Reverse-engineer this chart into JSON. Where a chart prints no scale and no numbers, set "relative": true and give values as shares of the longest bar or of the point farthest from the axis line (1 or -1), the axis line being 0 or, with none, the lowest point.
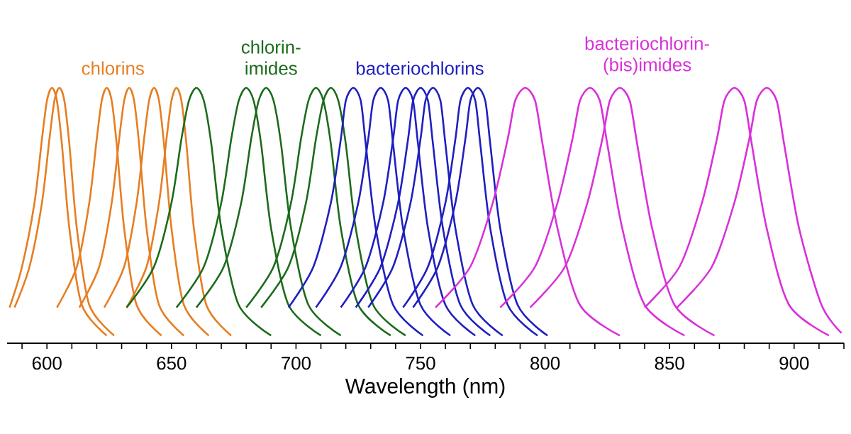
{
  "chart_data": {
    "type": "line",
    "relative": true,
    "xlabel": "Wavelength (nm)",
    "xlim": [
      584,
      920
    ],
    "xticks": [
      {
        "value": 590,
        "label": null
      },
      600,
      {
        "value": 610,
        "label": null
      },
      {
        "value": 620,
        "label": null
      },
      {
        "value": 630,
        "label": null
      },
      {
        "value": 640,
        "label": null
      },
      650,
      {
        "value": 660,
        "label": null
      },
      {
        "value": 670,
        "label": null
      },
      {
        "value": 680,
        "label": null
      },
      {
        "value": 690,
        "label": null
      },
      700,
      {
        "value": 710,
        "label": null
      },
      {
        "value": 720,
        "label": null
      },
      {
        "value": 730,
        "label": null
      },
      {
        "value": 740,
        "label": null
      },
      750,
      {
        "value": 760,
        "label": null
      },
      {
        "value": 770,
        "label": null
      },
      {
        "value": 780,
        "label": null
      },
      {
        "value": 790,
        "label": null
      },
      800,
      {
        "value": 810,
        "label": null
      },
      {
        "value": 820,
        "label": null
      },
      {
        "value": 830,
        "label": null
      },
      {
        "value": 840,
        "label": null
      },
      850,
      {
        "value": 860,
        "label": null
      },
      {
        "value": 870,
        "label": null
      },
      {
        "value": 880,
        "label": null
      },
      {
        "value": 890,
        "label": null
      },
      900,
      {
        "value": 910,
        "label": null
      },
      {
        "value": 920,
        "label": null
      }
    ],
    "series": [
      {
        "name": "chlorins",
        "color": "#e67e22",
        "x": [
          585,
          590,
          595,
          598,
          600,
          602,
          604,
          606,
          609,
          614,
          624
        ],
        "values": [
          0.14,
          0.3,
          0.55,
          0.8,
          0.95,
          1,
          0.95,
          0.78,
          0.45,
          0.15,
          0.03
        ]
      },
      {
        "color": "#e67e22",
        "x": [
          587,
          593,
          598,
          601,
          603,
          605,
          607,
          609,
          612,
          617,
          627
        ],
        "values": [
          0.14,
          0.3,
          0.55,
          0.8,
          0.95,
          1,
          0.95,
          0.78,
          0.45,
          0.15,
          0.03
        ]
      },
      {
        "color": "#e67e22",
        "x": [
          604,
          612,
          617,
          620,
          622,
          624,
          626,
          628,
          631,
          636,
          646
        ],
        "values": [
          0.14,
          0.3,
          0.55,
          0.8,
          0.95,
          1,
          0.95,
          0.78,
          0.45,
          0.15,
          0.03
        ]
      },
      {
        "color": "#e67e22",
        "x": [
          613,
          621,
          626,
          629,
          631,
          633,
          635,
          637,
          640,
          645,
          655
        ],
        "values": [
          0.14,
          0.3,
          0.55,
          0.8,
          0.95,
          1,
          0.95,
          0.78,
          0.45,
          0.15,
          0.03
        ]
      },
      {
        "color": "#e67e22",
        "x": [
          623,
          631,
          636,
          639,
          641,
          643,
          645,
          647,
          650,
          655,
          665
        ],
        "values": [
          0.14,
          0.3,
          0.55,
          0.8,
          0.95,
          1,
          0.95,
          0.78,
          0.45,
          0.15,
          0.03
        ]
      },
      {
        "color": "#e67e22",
        "x": [
          632,
          640,
          645,
          648,
          650,
          652,
          654,
          656,
          659,
          664,
          674
        ],
        "values": [
          0.14,
          0.3,
          0.55,
          0.8,
          0.95,
          1,
          0.95,
          0.78,
          0.45,
          0.15,
          0.03
        ]
      },
      {
        "name": "chlorin-imides",
        "color": "#1b6b1b",
        "x": [
          632,
          643,
          650,
          654,
          657,
          660,
          663,
          666,
          670,
          677,
          690
        ],
        "values": [
          0.14,
          0.3,
          0.55,
          0.8,
          0.95,
          1,
          0.95,
          0.78,
          0.45,
          0.15,
          0.03
        ]
      },
      {
        "color": "#1b6b1b",
        "x": [
          652,
          663,
          670,
          674,
          677,
          680,
          683,
          686,
          690,
          697,
          710
        ],
        "values": [
          0.14,
          0.3,
          0.55,
          0.8,
          0.95,
          1,
          0.95,
          0.78,
          0.45,
          0.15,
          0.03
        ]
      },
      {
        "color": "#1b6b1b",
        "x": [
          660,
          671,
          678,
          682,
          685,
          688,
          691,
          694,
          698,
          705,
          718
        ],
        "values": [
          0.14,
          0.3,
          0.55,
          0.8,
          0.95,
          1,
          0.95,
          0.78,
          0.45,
          0.15,
          0.03
        ]
      },
      {
        "color": "#1b6b1b",
        "x": [
          680,
          691,
          698,
          702,
          705,
          708,
          711,
          714,
          718,
          725,
          738
        ],
        "values": [
          0.14,
          0.3,
          0.55,
          0.8,
          0.95,
          1,
          0.95,
          0.78,
          0.45,
          0.15,
          0.03
        ]
      },
      {
        "color": "#1b6b1b",
        "x": [
          686,
          697,
          704,
          708,
          711,
          714,
          717,
          720,
          724,
          731,
          744
        ],
        "values": [
          0.14,
          0.3,
          0.55,
          0.8,
          0.95,
          1,
          0.95,
          0.78,
          0.45,
          0.15,
          0.03
        ]
      },
      {
        "name": "bacteriochlorins",
        "color": "#1f1fbf",
        "x": [
          697,
          707,
          714,
          718,
          720,
          723,
          726,
          728,
          732,
          739,
          751
        ],
        "values": [
          0.14,
          0.3,
          0.55,
          0.8,
          0.95,
          1,
          0.95,
          0.78,
          0.45,
          0.15,
          0.03
        ]
      },
      {
        "color": "#1f1fbf",
        "x": [
          708,
          718,
          725,
          729,
          731,
          734,
          737,
          739,
          743,
          750,
          762
        ],
        "values": [
          0.14,
          0.3,
          0.55,
          0.8,
          0.95,
          1,
          0.95,
          0.78,
          0.45,
          0.15,
          0.03
        ]
      },
      {
        "color": "#1f1fbf",
        "x": [
          718,
          728,
          735,
          739,
          741,
          744,
          747,
          749,
          753,
          760,
          772
        ],
        "values": [
          0.14,
          0.3,
          0.55,
          0.8,
          0.95,
          1,
          0.95,
          0.78,
          0.45,
          0.15,
          0.03
        ]
      },
      {
        "color": "#1f1fbf",
        "x": [
          724,
          734,
          741,
          745,
          747,
          750,
          753,
          755,
          759,
          766,
          778
        ],
        "values": [
          0.14,
          0.3,
          0.55,
          0.8,
          0.95,
          1,
          0.95,
          0.78,
          0.45,
          0.15,
          0.03
        ]
      },
      {
        "color": "#1f1fbf",
        "x": [
          729,
          739,
          746,
          750,
          752,
          755,
          758,
          760,
          764,
          771,
          783
        ],
        "values": [
          0.14,
          0.3,
          0.55,
          0.8,
          0.95,
          1,
          0.95,
          0.78,
          0.45,
          0.15,
          0.03
        ]
      },
      {
        "color": "#1f1fbf",
        "x": [
          743,
          753,
          760,
          764,
          766,
          769,
          772,
          774,
          778,
          785,
          797
        ],
        "values": [
          0.14,
          0.3,
          0.55,
          0.8,
          0.95,
          1,
          0.95,
          0.78,
          0.45,
          0.15,
          0.03
        ]
      },
      {
        "color": "#1f1fbf",
        "x": [
          747,
          757,
          764,
          768,
          770,
          773,
          776,
          778,
          782,
          789,
          801
        ],
        "values": [
          0.14,
          0.3,
          0.55,
          0.8,
          0.95,
          1,
          0.95,
          0.78,
          0.45,
          0.15,
          0.03
        ]
      },
      {
        "name": "bacteriochlorin-(bis)imides",
        "color": "#d930d9",
        "x": [
          756,
          770,
          779,
          785,
          788,
          792,
          796,
          799,
          805,
          814,
          830
        ],
        "values": [
          0.14,
          0.3,
          0.55,
          0.8,
          0.95,
          1,
          0.95,
          0.78,
          0.45,
          0.15,
          0.03
        ]
      },
      {
        "color": "#d930d9",
        "x": [
          782,
          796,
          805,
          811,
          814,
          818,
          822,
          825,
          831,
          840,
          856
        ],
        "values": [
          0.14,
          0.3,
          0.55,
          0.8,
          0.95,
          1,
          0.95,
          0.78,
          0.45,
          0.15,
          0.03
        ]
      },
      {
        "color": "#d930d9",
        "x": [
          794,
          808,
          817,
          823,
          826,
          830,
          834,
          837,
          843,
          852,
          868
        ],
        "values": [
          0.14,
          0.3,
          0.55,
          0.8,
          0.95,
          1,
          0.95,
          0.78,
          0.45,
          0.15,
          0.03
        ]
      },
      {
        "color": "#d930d9",
        "x": [
          840,
          854,
          863,
          869,
          872,
          876,
          880,
          883,
          889,
          898,
          914
        ],
        "values": [
          0.14,
          0.3,
          0.55,
          0.8,
          0.95,
          1,
          0.95,
          0.78,
          0.45,
          0.15,
          0.03
        ]
      },
      {
        "color": "#d930d9",
        "x": [
          853,
          867,
          876,
          882,
          885,
          889,
          893,
          896,
          902,
          911,
          919
        ],
        "values": [
          0.14,
          0.3,
          0.55,
          0.8,
          0.95,
          1,
          0.95,
          0.78,
          0.45,
          0.15,
          0.04
        ]
      }
    ]
  }
}
